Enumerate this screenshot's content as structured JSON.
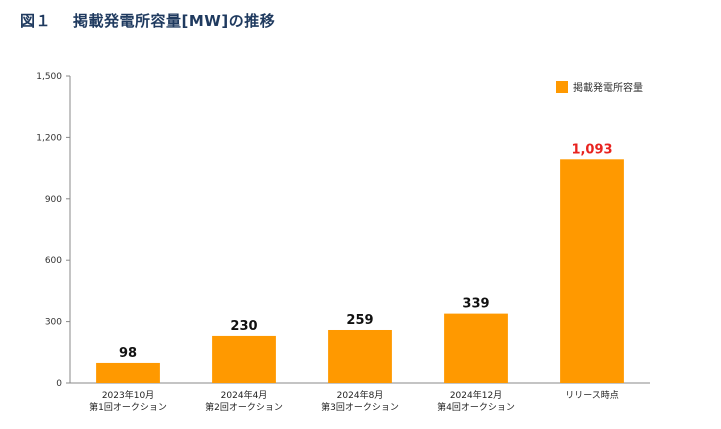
{
  "figure": {
    "number": "図１",
    "title": "掲載発電所容量[MW]の推移"
  },
  "chart_data": {
    "type": "bar",
    "categories": [
      [
        "2023年10月",
        "第1回オークション"
      ],
      [
        "2024年4月",
        "第2回オークション"
      ],
      [
        "2024年8月",
        "第3回オークション"
      ],
      [
        "2024年12月",
        "第4回オークション"
      ],
      [
        "リリース時点"
      ]
    ],
    "series": [
      {
        "name": "掲載発電所容量",
        "values": [
          98,
          230,
          259,
          339,
          1093
        ]
      }
    ],
    "value_labels": [
      "98",
      "230",
      "259",
      "339",
      "1,093"
    ],
    "ylim": [
      0,
      1500
    ],
    "yticks": [
      0,
      300,
      600,
      900,
      1200,
      1500
    ],
    "ytick_labels": [
      "0",
      "300",
      "600",
      "900",
      "1,200",
      "1,500"
    ],
    "grid": false,
    "legend_position": "top-right",
    "bar_color": "#ff9900",
    "highlight_label_color": "#e8231f",
    "label_color": "#111111"
  }
}
